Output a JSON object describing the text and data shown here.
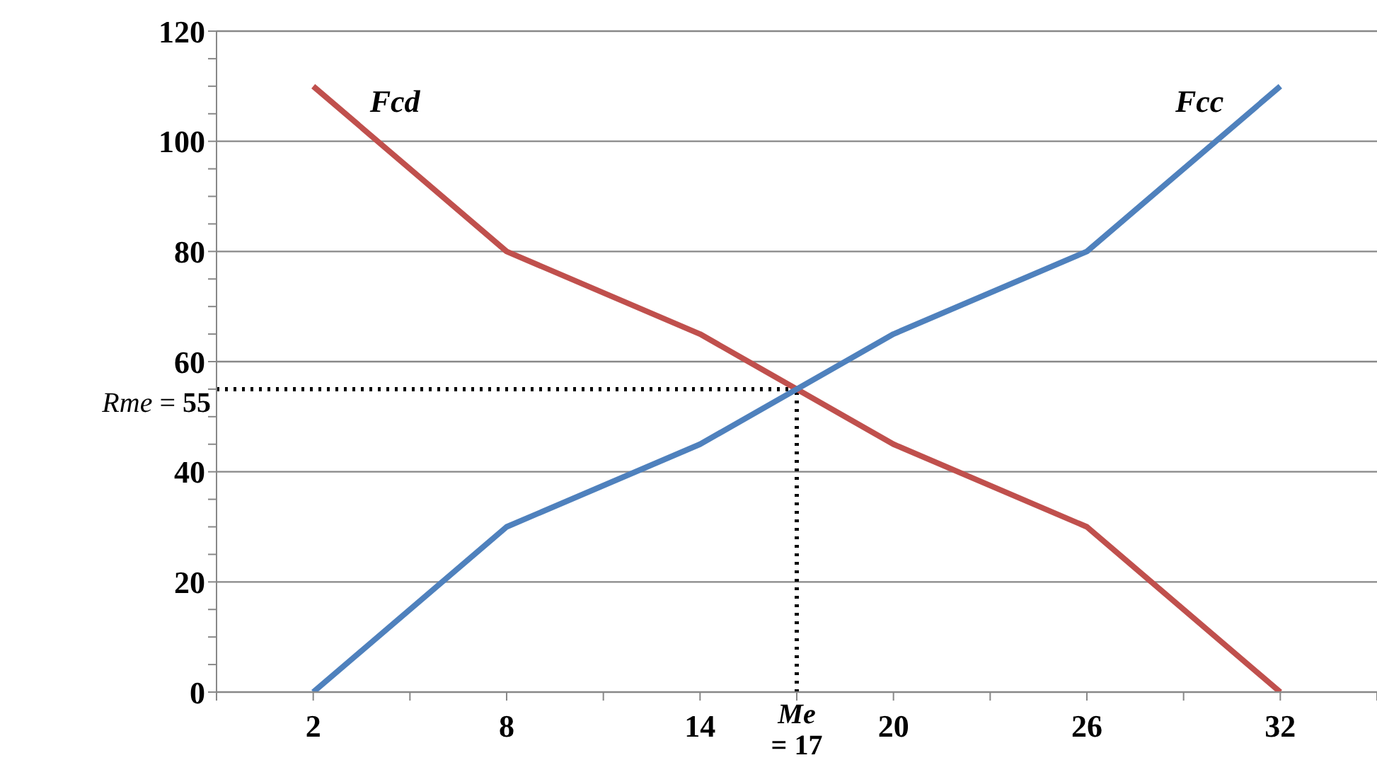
{
  "chart_data": {
    "type": "line",
    "x": [
      2,
      8,
      14,
      20,
      26,
      32
    ],
    "series": [
      {
        "name": "Fcd",
        "color": "#c0504d",
        "values": [
          110,
          80,
          65,
          45,
          30,
          0
        ]
      },
      {
        "name": "Fcc",
        "color": "#4f81bd",
        "values": [
          0,
          30,
          45,
          65,
          80,
          110
        ]
      }
    ],
    "xlim": [
      -1,
      35
    ],
    "xticks": [
      {
        "value": -1,
        "label": null
      },
      2,
      {
        "value": 5,
        "label": null
      },
      8,
      {
        "value": 11,
        "label": null
      },
      14,
      {
        "value": 17,
        "label": null
      },
      20,
      {
        "value": 23,
        "label": null
      },
      26,
      {
        "value": 29,
        "label": null
      },
      32,
      {
        "value": 35,
        "label": null
      }
    ],
    "ylim": [
      0,
      120
    ],
    "yticks": [
      0,
      {
        "value": 5,
        "label": null
      },
      {
        "value": 10,
        "label": null
      },
      {
        "value": 15,
        "label": null
      },
      20,
      {
        "value": 25,
        "label": null
      },
      {
        "value": 30,
        "label": null
      },
      {
        "value": 35,
        "label": null
      },
      40,
      {
        "value": 45,
        "label": null
      },
      {
        "value": 50,
        "label": null
      },
      {
        "value": 55,
        "label": null
      },
      60,
      {
        "value": 65,
        "label": null
      },
      {
        "value": 70,
        "label": null
      },
      {
        "value": 75,
        "label": null
      },
      80,
      {
        "value": 85,
        "label": null
      },
      {
        "value": 90,
        "label": null
      },
      {
        "value": 95,
        "label": null
      },
      100,
      {
        "value": 105,
        "label": null
      },
      {
        "value": 110,
        "label": null
      },
      {
        "value": 115,
        "label": null
      },
      120
    ],
    "grid": "y",
    "legend": false,
    "marker": "none",
    "line_style": "solid",
    "ref_lines": [
      {
        "axis": "x",
        "value": 17,
        "label": "Me = 17",
        "color": "#000000",
        "line_style": "dotted"
      },
      {
        "axis": "y",
        "value": 55,
        "label": "Rme = 55",
        "color": "#000000",
        "line_style": "dotted"
      }
    ]
  }
}
